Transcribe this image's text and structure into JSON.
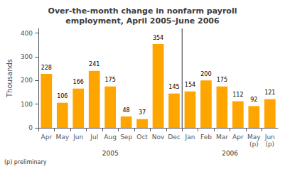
{
  "chart_data": {
    "type": "bar",
    "title": "Over-the-month change in nonfarm payroll\nemployment, April 2005–June 2006",
    "ylabel": "Thousands",
    "categories": [
      "Apr",
      "May",
      "Jun",
      "Jul",
      "Aug",
      "Sep",
      "Oct",
      "Nov",
      "Dec",
      "Jan",
      "Feb",
      "Mar",
      "Apr",
      "May\n(p)",
      "Jun\n(p)"
    ],
    "values": [
      228,
      106,
      166,
      241,
      175,
      48,
      37,
      354,
      145,
      154,
      200,
      175,
      112,
      92,
      121
    ],
    "color": "#FFA500",
    "ylim": [
      0,
      420
    ],
    "yticks": [
      0,
      100,
      200,
      300,
      400
    ],
    "grid": false,
    "data_labels": true,
    "footnote": "(p) preliminary",
    "annotations": [
      {
        "text": "2005",
        "x": 4.0
      },
      {
        "text": "2006",
        "x": 11.5
      }
    ],
    "divider_x": 8.5
  }
}
